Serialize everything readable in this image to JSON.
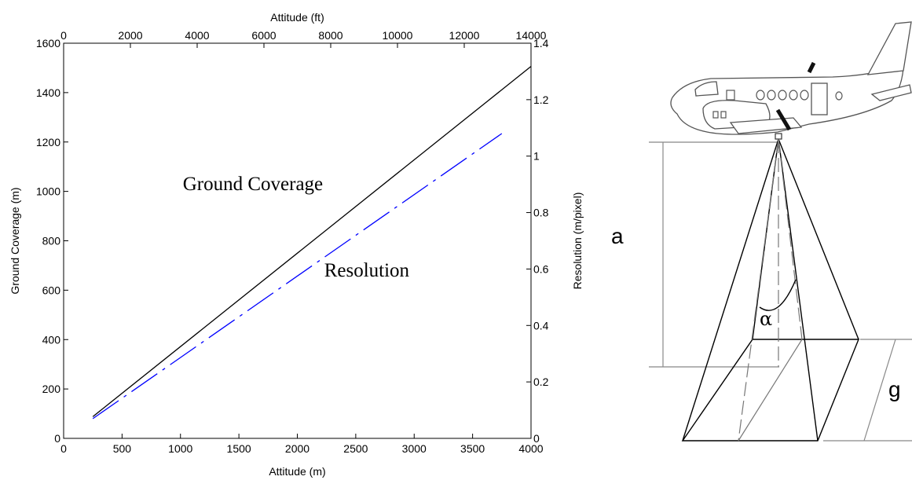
{
  "chart_data": {
    "type": "line",
    "x_bottom": {
      "label": "Attitude (m)",
      "range": [
        0,
        4000
      ],
      "ticks": [
        "0",
        "500",
        "1000",
        "1500",
        "2000",
        "2500",
        "3000",
        "3500",
        "4000"
      ]
    },
    "x_top": {
      "label": "Attitude (ft)",
      "range": [
        0,
        14000
      ],
      "ticks": [
        "0",
        "2000",
        "4000",
        "6000",
        "8000",
        "10000",
        "12000",
        "14000"
      ]
    },
    "y_left": {
      "label": "Ground Coverage (m)",
      "range": [
        0,
        1600
      ],
      "ticks": [
        "0",
        "200",
        "400",
        "600",
        "800",
        "1000",
        "1200",
        "1400",
        "1600"
      ]
    },
    "y_right": {
      "label": "Resolution (m/pixel)",
      "range": [
        0,
        1.4
      ],
      "ticks": [
        "0",
        "0.2",
        "0.4",
        "0.6",
        "0.8",
        "1",
        "1.2",
        "1.4"
      ]
    },
    "series": [
      {
        "name": "Ground Coverage",
        "axis": "left",
        "color": "#000000",
        "style": "solid",
        "x": [
          250,
          4000
        ],
        "y": [
          88,
          1506
        ]
      },
      {
        "name": "Resolution",
        "axis": "right",
        "color": "#0000ff",
        "style": "dash-dot",
        "x": [
          250,
          3750
        ],
        "y": [
          0.07,
          1.08
        ]
      }
    ],
    "annotations": [
      "Ground Coverage",
      "Resolution"
    ],
    "grid": false
  },
  "diagram": {
    "labels": {
      "altitude": "a",
      "ground": "g",
      "angle": "α"
    }
  }
}
